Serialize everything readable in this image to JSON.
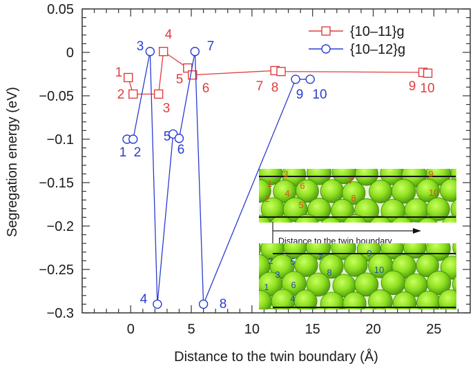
{
  "chart_data": {
    "type": "line",
    "title": "",
    "xlabel": "Distance to the twin boundary (Å)",
    "ylabel": "Segregation energy (eV)",
    "xlim": [
      -4,
      28
    ],
    "ylim": [
      -0.3,
      0.05
    ],
    "x_ticks": [
      0,
      5,
      10,
      15,
      20,
      25
    ],
    "x_tick_labels": [
      "0",
      "5",
      "10",
      "15",
      "20",
      "25"
    ],
    "y_ticks": [
      0.05,
      0,
      -0.05,
      -0.1,
      -0.15,
      -0.2,
      -0.25,
      -0.3
    ],
    "y_tick_labels": [
      "0.05",
      "0",
      "−0.05",
      "−0.1",
      "−0.15",
      "−0.2",
      "−0.25",
      "−0.3"
    ],
    "grid": false,
    "legend_position": "upper right",
    "series": [
      {
        "name": "{10–11}g",
        "color": "#e03c3c",
        "marker": "square",
        "x": [
          -0.2,
          0.2,
          2.3,
          2.7,
          4.7,
          5.1,
          11.9,
          12.4,
          24.1,
          24.5
        ],
        "y": [
          -0.029,
          -0.048,
          -0.048,
          0.001,
          -0.018,
          -0.026,
          -0.021,
          -0.022,
          -0.023,
          -0.024
        ],
        "point_labels": [
          "1",
          "2",
          "3",
          "4",
          "5",
          "6",
          "7",
          "8",
          "9",
          "10"
        ]
      },
      {
        "name": "{10–12}g",
        "color": "#2a3bd0",
        "marker": "circle",
        "x": [
          -0.3,
          0.2,
          1.6,
          2.2,
          3.5,
          4.0,
          5.3,
          6.0,
          13.6,
          14.8
        ],
        "y": [
          -0.1,
          -0.1,
          0.001,
          -0.29,
          -0.094,
          -0.099,
          0.001,
          -0.29,
          -0.031,
          -0.031
        ],
        "point_labels": [
          "1",
          "2",
          "3",
          "4",
          "5",
          "6",
          "7",
          "8",
          "9",
          "10"
        ]
      }
    ],
    "annotations": {
      "inset_caption": "Distance to the twin boundary",
      "inset_top_labels": [
        "1",
        "2",
        "3",
        "4",
        "5",
        "6",
        "7",
        "8",
        "9",
        "10"
      ],
      "inset_bottom_labels": [
        "1",
        "2",
        "3",
        "4",
        "5",
        "6",
        "7",
        "8",
        "9",
        "10"
      ]
    }
  },
  "colors": {
    "red_series": "#e03c3c",
    "blue_series": "#2a3bd0",
    "atom_fill": "#8fe020",
    "atom_edge": "#4a9a10",
    "inset_label_top": "#e0501a",
    "inset_label_bottom": "#1f4fb0"
  }
}
